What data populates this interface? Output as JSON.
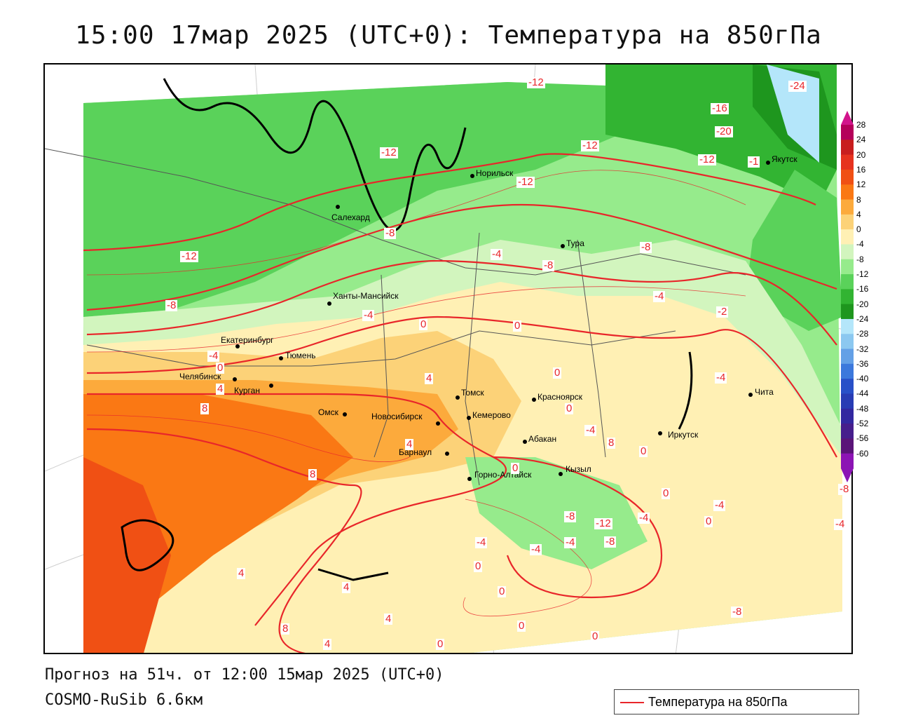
{
  "title": "15:00 17мар 2025 (UTC+0): Температура на 850гПа",
  "forecast_line": "Прогноз на 51ч. от 12:00 15мар 2025 (UTC+0)",
  "model_line": "COSMO-RuSib 6.6км",
  "legend": {
    "label": "Температура на 850гПа",
    "line_color": "#e8262a"
  },
  "colorbar": {
    "ticks": [
      "28",
      "24",
      "20",
      "16",
      "12",
      "8",
      "4",
      "0",
      "-4",
      "-8",
      "-12",
      "-16",
      "-20",
      "-24",
      "-28",
      "-32",
      "-36",
      "-40",
      "-44",
      "-48",
      "-52",
      "-56",
      "-60"
    ],
    "colors": [
      "#b4005a",
      "#c81e1e",
      "#e6321e",
      "#f05014",
      "#fa7814",
      "#fcaa3c",
      "#fcd278",
      "#fff0b4",
      "#d2f5be",
      "#96eb8c",
      "#5ad25a",
      "#32b432",
      "#1e961e",
      "#b4e6fa",
      "#8cc8f0",
      "#64a0e6",
      "#3c78dc",
      "#2850c8",
      "#283cb4",
      "#3228a0",
      "#461e8c",
      "#5a1478",
      "#8c14b4"
    ]
  },
  "cities": [
    {
      "name": "Норильск"
    },
    {
      "name": "Салехард"
    },
    {
      "name": "Тура"
    },
    {
      "name": "Ханты-Мансийск"
    },
    {
      "name": "Екатеринбург"
    },
    {
      "name": "Тюмень"
    },
    {
      "name": "Челябинск"
    },
    {
      "name": "Курган"
    },
    {
      "name": "Омск"
    },
    {
      "name": "Новосибирск"
    },
    {
      "name": "Томск"
    },
    {
      "name": "Кемерово"
    },
    {
      "name": "Красноярск"
    },
    {
      "name": "Абакан"
    },
    {
      "name": "Барнаул"
    },
    {
      "name": "Горно-Алтайск"
    },
    {
      "name": "Кызыл"
    },
    {
      "name": "Иркутск"
    },
    {
      "name": "Чита"
    },
    {
      "name": "Якутск"
    }
  ],
  "isotherm_labels": [
    "-12",
    "-24",
    "-16",
    "-20",
    "-12",
    "-12",
    "-12",
    "-1",
    "-12",
    "-8",
    "-12",
    "-8",
    "-4",
    "-8",
    "-4",
    "-8",
    "-4",
    "-2",
    "0",
    "0",
    "-4",
    "-4",
    "0",
    "0",
    "4",
    "0",
    "4",
    "4",
    "-4",
    "8",
    "8",
    "8",
    "4",
    "8",
    "4",
    "4",
    "0",
    "0",
    "-8",
    "-12",
    "-4",
    "-4",
    "-4",
    "-8",
    "0",
    "0",
    "0",
    "0",
    "0",
    "-4",
    "-4",
    "0",
    "0",
    "-8",
    "-4",
    "-8",
    "4"
  ]
}
